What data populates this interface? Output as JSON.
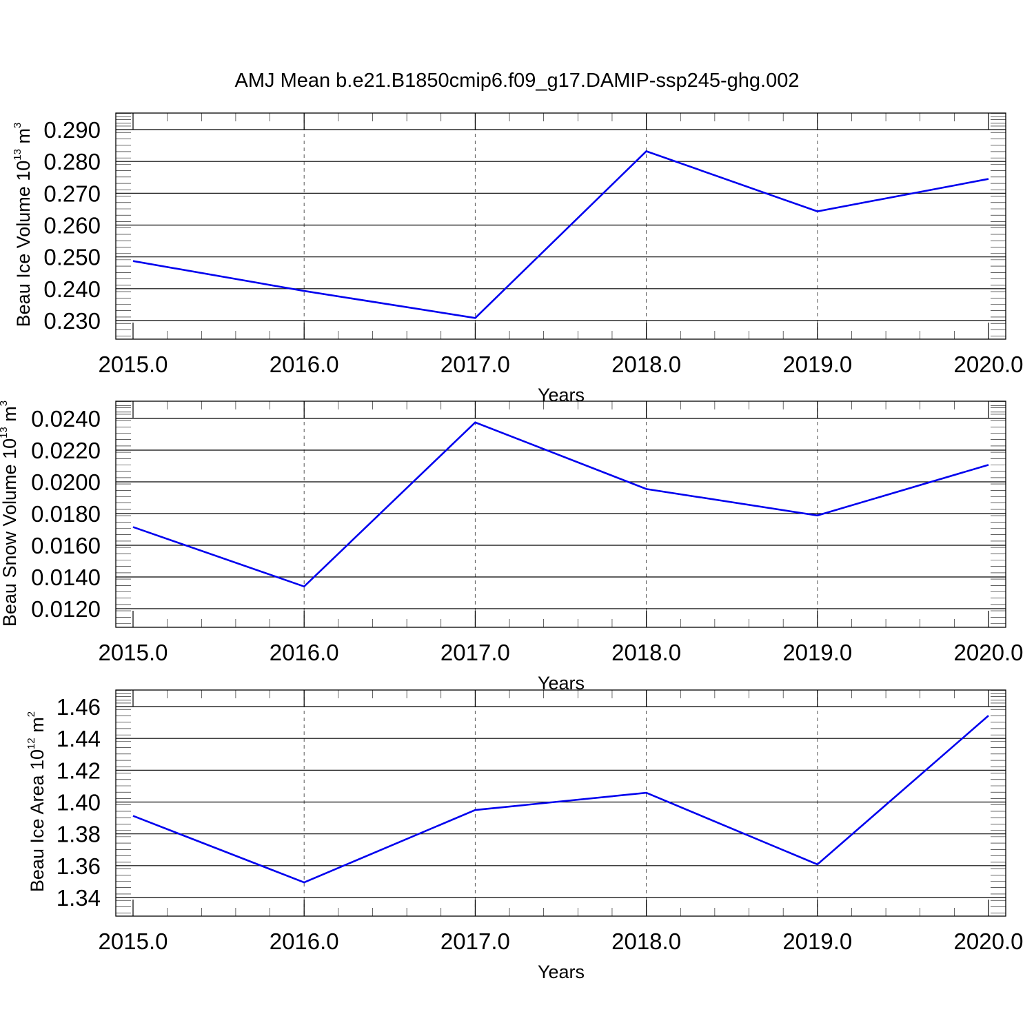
{
  "title": "AMJ Mean b.e21.B1850cmip6.f09_g17.DAMIP-ssp245-ghg.002",
  "chart_data": [
    {
      "type": "line",
      "xlabel": "Years",
      "ylabel": {
        "text": "Beau Ice Volume 10",
        "exp": "13",
        "unit": " m",
        "unit_exp": "3"
      },
      "x": [
        2015,
        2016,
        2017,
        2018,
        2019,
        2020
      ],
      "x_ticks": [
        "2015.0",
        "2016.0",
        "2017.0",
        "2018.0",
        "2019.0",
        "2020.0"
      ],
      "y_ticks": [
        "0.290",
        "0.280",
        "0.270",
        "0.260",
        "0.250",
        "0.240",
        "0.230"
      ],
      "series": [
        {
          "values": [
            0.2487,
            0.2393,
            0.2308,
            0.2832,
            0.2643,
            0.2745
          ],
          "color": "#0000ee"
        }
      ],
      "xlim": [
        2015,
        2020.1
      ],
      "ylim": [
        0.2255,
        0.2955
      ],
      "grid": "x-dashed"
    },
    {
      "type": "line",
      "xlabel": "Years",
      "ylabel": {
        "text": "Beau Snow Volume 10",
        "exp": "13",
        "unit": " m",
        "unit_exp": "3"
      },
      "x": [
        2015,
        2016,
        2017,
        2018,
        2019,
        2020
      ],
      "x_ticks": [
        "2015.0",
        "2016.0",
        "2017.0",
        "2018.0",
        "2019.0",
        "2020.0"
      ],
      "y_ticks": [
        "0.0240",
        "0.0220",
        "0.0200",
        "0.0180",
        "0.0160",
        "0.0140",
        "0.0120"
      ],
      "series": [
        {
          "values": [
            0.01715,
            0.0134,
            0.02375,
            0.01955,
            0.01788,
            0.02107
          ],
          "color": "#0000ee"
        }
      ],
      "xlim": [
        2015,
        2020.1
      ],
      "ylim": [
        0.011,
        0.0251
      ],
      "grid": "x-dashed"
    },
    {
      "type": "line",
      "xlabel": "Years",
      "ylabel": {
        "text": "Beau Ice Area 10",
        "exp": "12",
        "unit": " m",
        "unit_exp": "2"
      },
      "x": [
        2015,
        2016,
        2017,
        2018,
        2019,
        2020
      ],
      "x_ticks": [
        "2015.0",
        "2016.0",
        "2017.0",
        "2018.0",
        "2019.0",
        "2020.0"
      ],
      "y_ticks": [
        "1.46",
        "1.44",
        "1.42",
        "1.40",
        "1.38",
        "1.36",
        "1.34"
      ],
      "series": [
        {
          "values": [
            1.3913,
            1.3495,
            1.395,
            1.4058,
            1.3608,
            1.4543
          ],
          "color": "#0000ee"
        }
      ],
      "xlim": [
        2015,
        2020.1
      ],
      "ylim": [
        1.3287,
        1.4703
      ],
      "grid": "x-dashed"
    }
  ]
}
